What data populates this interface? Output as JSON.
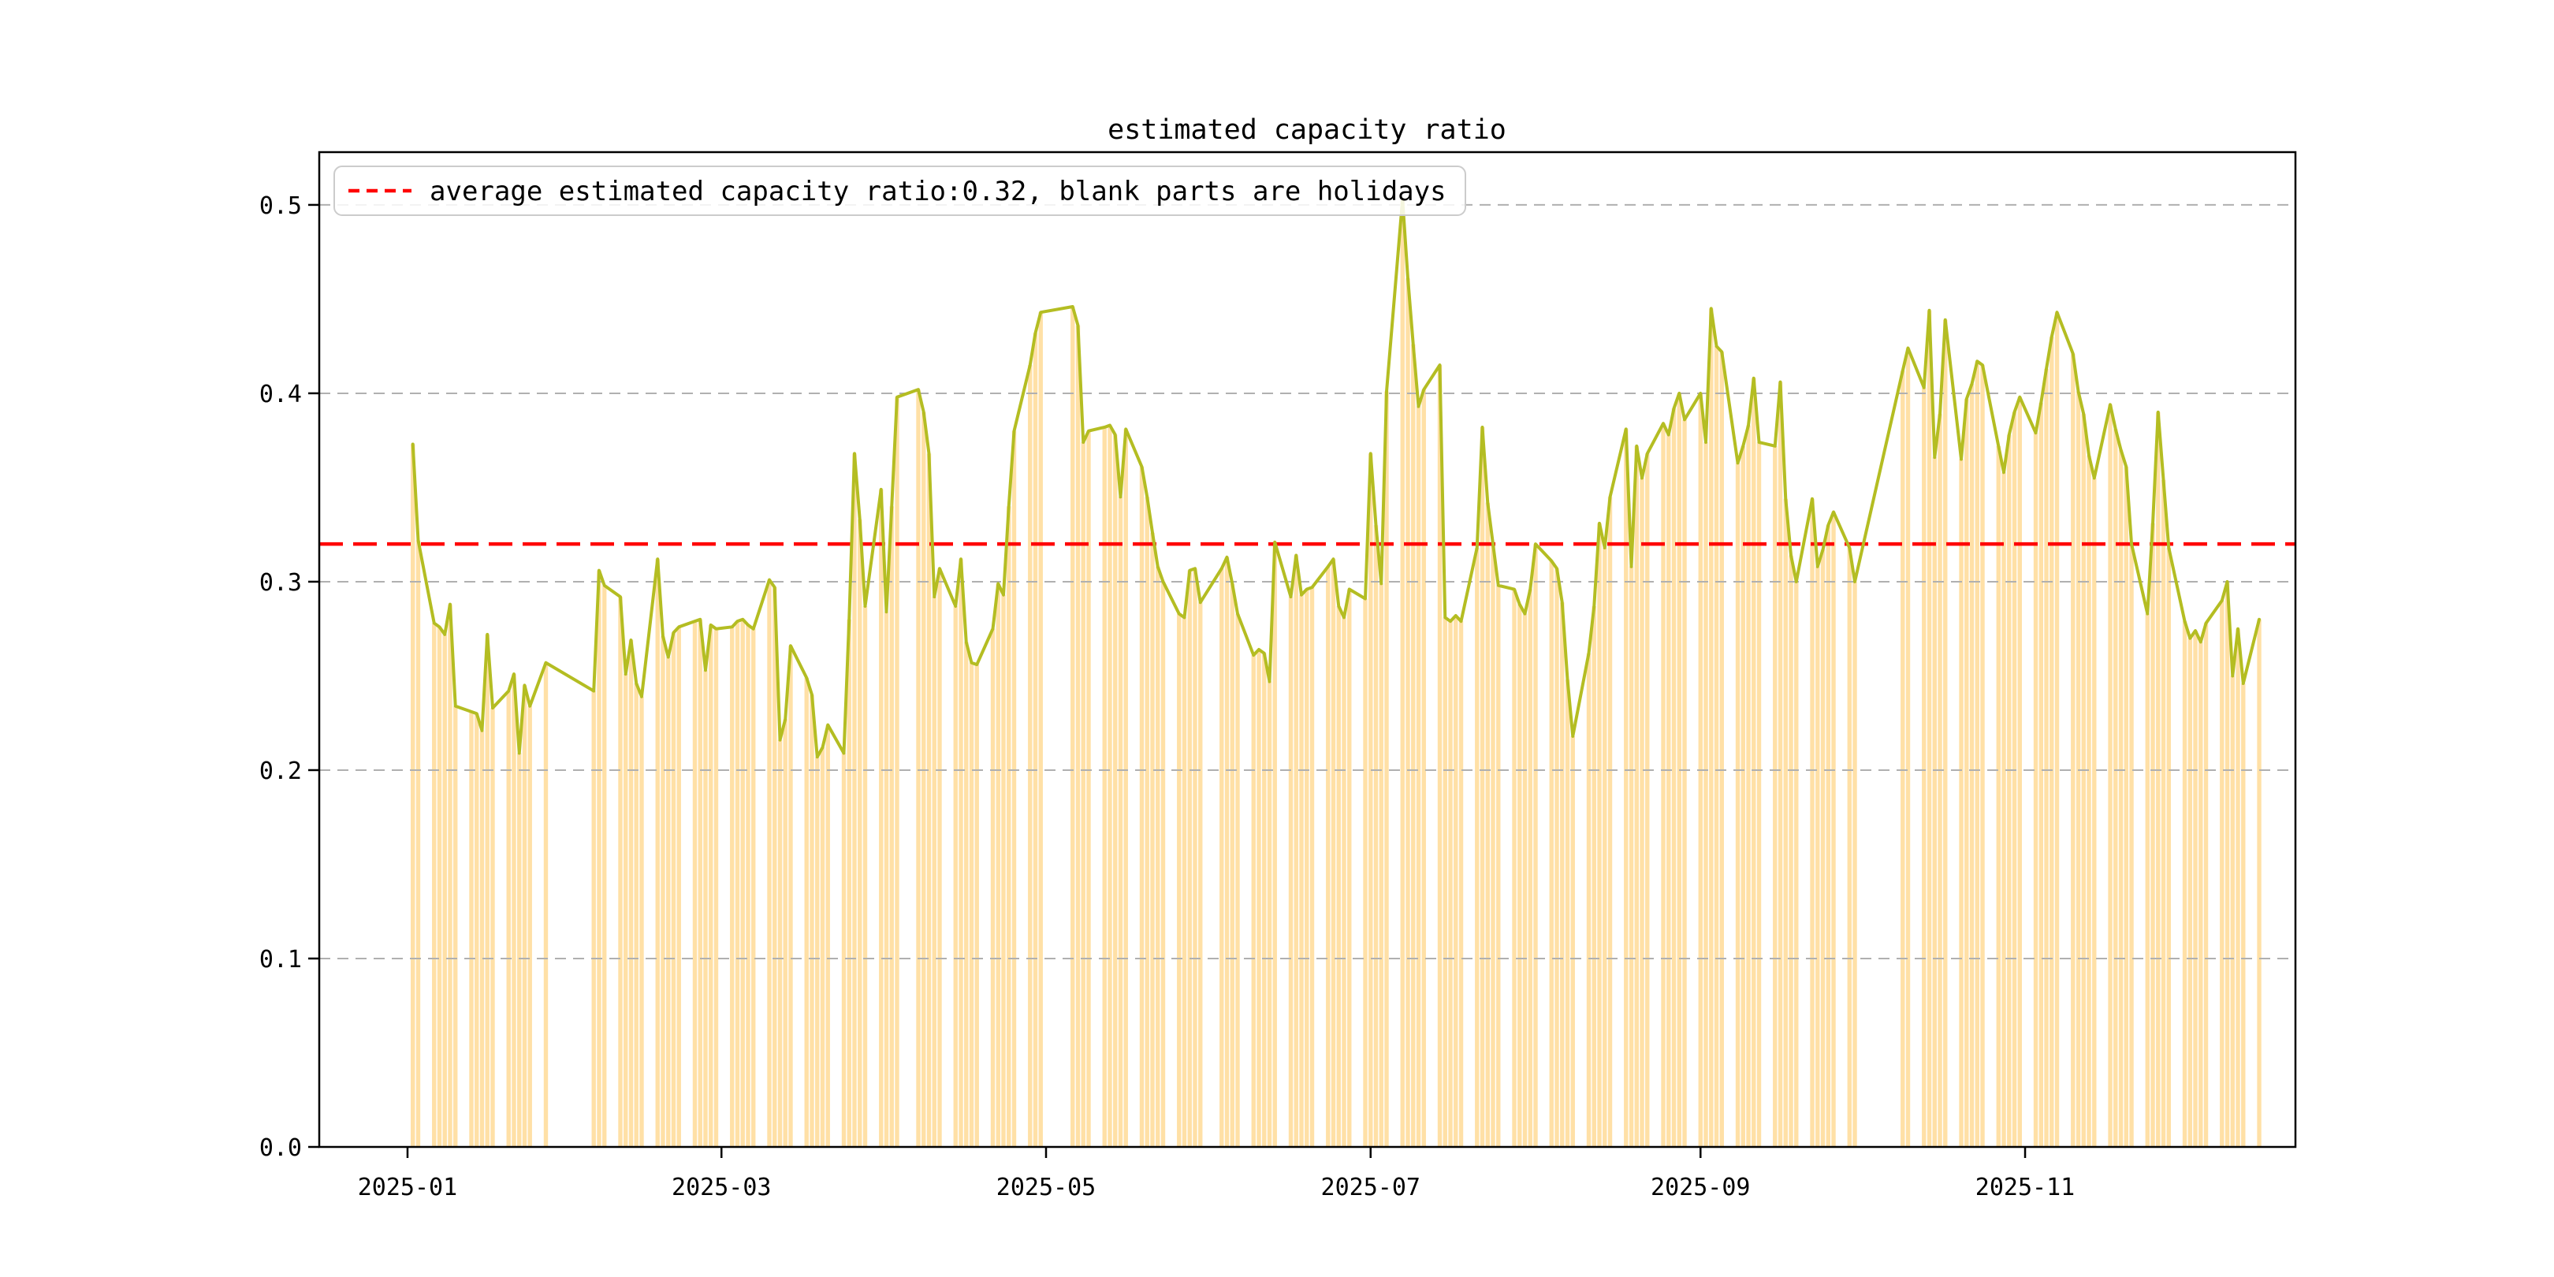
{
  "title": "estimated capacity ratio",
  "legend": {
    "label": "average estimated capacity ratio:0.32, blank parts are holidays"
  },
  "colors": {
    "background": "#ffffff",
    "line": "#b4bd22",
    "bar": "#ffa500",
    "bar_opacity": 0.35,
    "average_line": "#ff0000",
    "grid": "#b0b0b0",
    "axis": "#000000",
    "text": "#000000",
    "legend_border": "#cccccc"
  },
  "chart_data": {
    "type": "bar+line",
    "title": "estimated capacity ratio",
    "series_name": "estimated capacity ratio",
    "average": 0.32,
    "average_label": "average estimated capacity ratio:0.32, blank parts are holidays",
    "note": "blank parts are holidays (no bars on weekends/holidays)",
    "grid": "horizontal dashed",
    "legend_position": "upper left",
    "ylim": [
      0.0,
      0.528
    ],
    "xlim_days_from_2025_01_01": [
      -16.59,
      354.81
    ],
    "y_ticks": [
      "0.0",
      "0.1",
      "0.2",
      "0.3",
      "0.4",
      "0.5"
    ],
    "x_ticks": [
      "2025-01",
      "2025-03",
      "2025-05",
      "2025-07",
      "2025-09",
      "2025-11"
    ],
    "points": [
      [
        "2025-01-02",
        0.373
      ],
      [
        "2025-01-03",
        0.322
      ],
      [
        "2025-01-06",
        0.278
      ],
      [
        "2025-01-07",
        0.276
      ],
      [
        "2025-01-08",
        0.272
      ],
      [
        "2025-01-09",
        0.288
      ],
      [
        "2025-01-10",
        0.234
      ],
      [
        "2025-01-13",
        0.231
      ],
      [
        "2025-01-14",
        0.23
      ],
      [
        "2025-01-15",
        0.221
      ],
      [
        "2025-01-16",
        0.272
      ],
      [
        "2025-01-17",
        0.233
      ],
      [
        "2025-01-20",
        0.242
      ],
      [
        "2025-01-21",
        0.251
      ],
      [
        "2025-01-22",
        0.209
      ],
      [
        "2025-01-23",
        0.245
      ],
      [
        "2025-01-24",
        0.234
      ],
      [
        "2025-01-27",
        0.257
      ],
      [
        "2025-02-05",
        0.242
      ],
      [
        "2025-02-06",
        0.306
      ],
      [
        "2025-02-07",
        0.298
      ],
      [
        "2025-02-10",
        0.292
      ],
      [
        "2025-02-11",
        0.251
      ],
      [
        "2025-02-12",
        0.269
      ],
      [
        "2025-02-13",
        0.246
      ],
      [
        "2025-02-14",
        0.239
      ],
      [
        "2025-02-17",
        0.312
      ],
      [
        "2025-02-18",
        0.271
      ],
      [
        "2025-02-19",
        0.26
      ],
      [
        "2025-02-20",
        0.273
      ],
      [
        "2025-02-21",
        0.276
      ],
      [
        "2025-02-24",
        0.279
      ],
      [
        "2025-02-25",
        0.28
      ],
      [
        "2025-02-26",
        0.253
      ],
      [
        "2025-02-27",
        0.277
      ],
      [
        "2025-02-28",
        0.275
      ],
      [
        "2025-03-03",
        0.276
      ],
      [
        "2025-03-04",
        0.279
      ],
      [
        "2025-03-05",
        0.28
      ],
      [
        "2025-03-06",
        0.277
      ],
      [
        "2025-03-07",
        0.275
      ],
      [
        "2025-03-10",
        0.301
      ],
      [
        "2025-03-11",
        0.297
      ],
      [
        "2025-03-12",
        0.216
      ],
      [
        "2025-03-13",
        0.227
      ],
      [
        "2025-03-14",
        0.266
      ],
      [
        "2025-03-17",
        0.249
      ],
      [
        "2025-03-18",
        0.24
      ],
      [
        "2025-03-19",
        0.207
      ],
      [
        "2025-03-20",
        0.212
      ],
      [
        "2025-03-21",
        0.224
      ],
      [
        "2025-03-24",
        0.209
      ],
      [
        "2025-03-25",
        0.28
      ],
      [
        "2025-03-26",
        0.368
      ],
      [
        "2025-03-27",
        0.333
      ],
      [
        "2025-03-28",
        0.287
      ],
      [
        "2025-03-31",
        0.349
      ],
      [
        "2025-04-01",
        0.284
      ],
      [
        "2025-04-02",
        0.34
      ],
      [
        "2025-04-03",
        0.398
      ],
      [
        "2025-04-07",
        0.402
      ],
      [
        "2025-04-08",
        0.39
      ],
      [
        "2025-04-09",
        0.368
      ],
      [
        "2025-04-10",
        0.292
      ],
      [
        "2025-04-11",
        0.307
      ],
      [
        "2025-04-14",
        0.287
      ],
      [
        "2025-04-15",
        0.312
      ],
      [
        "2025-04-16",
        0.268
      ],
      [
        "2025-04-17",
        0.257
      ],
      [
        "2025-04-18",
        0.256
      ],
      [
        "2025-04-21",
        0.275
      ],
      [
        "2025-04-22",
        0.299
      ],
      [
        "2025-04-23",
        0.293
      ],
      [
        "2025-04-24",
        0.34
      ],
      [
        "2025-04-25",
        0.38
      ],
      [
        "2025-04-28",
        0.415
      ],
      [
        "2025-04-29",
        0.432
      ],
      [
        "2025-04-30",
        0.443
      ],
      [
        "2025-05-06",
        0.446
      ],
      [
        "2025-05-07",
        0.436
      ],
      [
        "2025-05-08",
        0.374
      ],
      [
        "2025-05-09",
        0.38
      ],
      [
        "2025-05-12",
        0.382
      ],
      [
        "2025-05-13",
        0.383
      ],
      [
        "2025-05-14",
        0.378
      ],
      [
        "2025-05-15",
        0.345
      ],
      [
        "2025-05-16",
        0.381
      ],
      [
        "2025-05-19",
        0.361
      ],
      [
        "2025-05-20",
        0.345
      ],
      [
        "2025-05-21",
        0.326
      ],
      [
        "2025-05-22",
        0.308
      ],
      [
        "2025-05-23",
        0.3
      ],
      [
        "2025-05-26",
        0.283
      ],
      [
        "2025-05-27",
        0.281
      ],
      [
        "2025-05-28",
        0.306
      ],
      [
        "2025-05-29",
        0.307
      ],
      [
        "2025-05-30",
        0.289
      ],
      [
        "2025-06-03",
        0.307
      ],
      [
        "2025-06-04",
        0.313
      ],
      [
        "2025-06-05",
        0.299
      ],
      [
        "2025-06-06",
        0.283
      ],
      [
        "2025-06-09",
        0.261
      ],
      [
        "2025-06-10",
        0.264
      ],
      [
        "2025-06-11",
        0.262
      ],
      [
        "2025-06-12",
        0.247
      ],
      [
        "2025-06-13",
        0.321
      ],
      [
        "2025-06-16",
        0.292
      ],
      [
        "2025-06-17",
        0.314
      ],
      [
        "2025-06-18",
        0.293
      ],
      [
        "2025-06-19",
        0.296
      ],
      [
        "2025-06-20",
        0.297
      ],
      [
        "2025-06-23",
        0.308
      ],
      [
        "2025-06-24",
        0.312
      ],
      [
        "2025-06-25",
        0.287
      ],
      [
        "2025-06-26",
        0.281
      ],
      [
        "2025-06-27",
        0.296
      ],
      [
        "2025-06-30",
        0.291
      ],
      [
        "2025-07-01",
        0.368
      ],
      [
        "2025-07-02",
        0.33
      ],
      [
        "2025-07-03",
        0.299
      ],
      [
        "2025-07-04",
        0.401
      ],
      [
        "2025-07-07",
        0.503
      ],
      [
        "2025-07-08",
        0.461
      ],
      [
        "2025-07-09",
        0.426
      ],
      [
        "2025-07-10",
        0.393
      ],
      [
        "2025-07-11",
        0.402
      ],
      [
        "2025-07-14",
        0.415
      ],
      [
        "2025-07-15",
        0.281
      ],
      [
        "2025-07-16",
        0.279
      ],
      [
        "2025-07-17",
        0.282
      ],
      [
        "2025-07-18",
        0.279
      ],
      [
        "2025-07-21",
        0.318
      ],
      [
        "2025-07-22",
        0.382
      ],
      [
        "2025-07-23",
        0.342
      ],
      [
        "2025-07-24",
        0.32
      ],
      [
        "2025-07-25",
        0.298
      ],
      [
        "2025-07-28",
        0.296
      ],
      [
        "2025-07-29",
        0.288
      ],
      [
        "2025-07-30",
        0.283
      ],
      [
        "2025-07-31",
        0.296
      ],
      [
        "2025-08-01",
        0.32
      ],
      [
        "2025-08-04",
        0.311
      ],
      [
        "2025-08-05",
        0.307
      ],
      [
        "2025-08-06",
        0.289
      ],
      [
        "2025-08-07",
        0.248
      ],
      [
        "2025-08-08",
        0.218
      ],
      [
        "2025-08-11",
        0.262
      ],
      [
        "2025-08-12",
        0.287
      ],
      [
        "2025-08-13",
        0.331
      ],
      [
        "2025-08-14",
        0.318
      ],
      [
        "2025-08-15",
        0.345
      ],
      [
        "2025-08-18",
        0.381
      ],
      [
        "2025-08-19",
        0.308
      ],
      [
        "2025-08-20",
        0.372
      ],
      [
        "2025-08-21",
        0.355
      ],
      [
        "2025-08-22",
        0.368
      ],
      [
        "2025-08-25",
        0.384
      ],
      [
        "2025-08-26",
        0.378
      ],
      [
        "2025-08-27",
        0.392
      ],
      [
        "2025-08-28",
        0.4
      ],
      [
        "2025-08-29",
        0.386
      ],
      [
        "2025-09-01",
        0.4
      ],
      [
        "2025-09-02",
        0.374
      ],
      [
        "2025-09-03",
        0.445
      ],
      [
        "2025-09-04",
        0.425
      ],
      [
        "2025-09-05",
        0.422
      ],
      [
        "2025-09-08",
        0.363
      ],
      [
        "2025-09-09",
        0.372
      ],
      [
        "2025-09-10",
        0.383
      ],
      [
        "2025-09-11",
        0.408
      ],
      [
        "2025-09-12",
        0.374
      ],
      [
        "2025-09-15",
        0.372
      ],
      [
        "2025-09-16",
        0.406
      ],
      [
        "2025-09-17",
        0.344
      ],
      [
        "2025-09-18",
        0.314
      ],
      [
        "2025-09-19",
        0.3
      ],
      [
        "2025-09-22",
        0.344
      ],
      [
        "2025-09-23",
        0.308
      ],
      [
        "2025-09-24",
        0.317
      ],
      [
        "2025-09-25",
        0.33
      ],
      [
        "2025-09-26",
        0.337
      ],
      [
        "2025-09-29",
        0.318
      ],
      [
        "2025-09-30",
        0.3
      ],
      [
        "2025-10-09",
        0.412
      ],
      [
        "2025-10-10",
        0.424
      ],
      [
        "2025-10-13",
        0.403
      ],
      [
        "2025-10-14",
        0.444
      ],
      [
        "2025-10-15",
        0.366
      ],
      [
        "2025-10-16",
        0.389
      ],
      [
        "2025-10-17",
        0.439
      ],
      [
        "2025-10-20",
        0.365
      ],
      [
        "2025-10-21",
        0.397
      ],
      [
        "2025-10-22",
        0.405
      ],
      [
        "2025-10-23",
        0.417
      ],
      [
        "2025-10-24",
        0.415
      ],
      [
        "2025-10-27",
        0.372
      ],
      [
        "2025-10-28",
        0.358
      ],
      [
        "2025-10-29",
        0.378
      ],
      [
        "2025-10-30",
        0.39
      ],
      [
        "2025-10-31",
        0.398
      ],
      [
        "2025-11-03",
        0.379
      ],
      [
        "2025-11-04",
        0.395
      ],
      [
        "2025-11-05",
        0.413
      ],
      [
        "2025-11-06",
        0.43
      ],
      [
        "2025-11-07",
        0.443
      ],
      [
        "2025-11-10",
        0.421
      ],
      [
        "2025-11-11",
        0.401
      ],
      [
        "2025-11-12",
        0.389
      ],
      [
        "2025-11-13",
        0.367
      ],
      [
        "2025-11-14",
        0.355
      ],
      [
        "2025-11-17",
        0.394
      ],
      [
        "2025-11-18",
        0.381
      ],
      [
        "2025-11-19",
        0.37
      ],
      [
        "2025-11-20",
        0.361
      ],
      [
        "2025-11-21",
        0.32
      ],
      [
        "2025-11-24",
        0.283
      ],
      [
        "2025-11-25",
        0.331
      ],
      [
        "2025-11-26",
        0.39
      ],
      [
        "2025-11-27",
        0.354
      ],
      [
        "2025-11-28",
        0.318
      ],
      [
        "2025-12-01",
        0.279
      ],
      [
        "2025-12-02",
        0.27
      ],
      [
        "2025-12-03",
        0.274
      ],
      [
        "2025-12-04",
        0.268
      ],
      [
        "2025-12-05",
        0.278
      ],
      [
        "2025-12-08",
        0.29
      ],
      [
        "2025-12-09",
        0.3
      ],
      [
        "2025-12-10",
        0.25
      ],
      [
        "2025-12-11",
        0.275
      ],
      [
        "2025-12-12",
        0.246
      ],
      [
        "2025-12-15",
        0.28
      ]
    ]
  }
}
